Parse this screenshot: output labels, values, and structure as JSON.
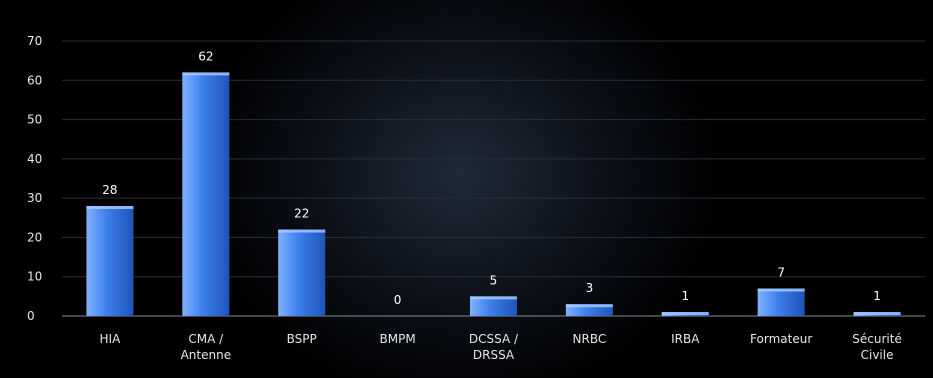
{
  "chart_data": {
    "type": "bar",
    "categories": [
      [
        "HIA"
      ],
      [
        "CMA /",
        "Antenne"
      ],
      [
        "BSPP"
      ],
      [
        "BMPM"
      ],
      [
        "DCSSA /",
        "DRSSA"
      ],
      [
        "NRBC"
      ],
      [
        "IRBA"
      ],
      [
        "Formateur"
      ],
      [
        "Sécurité",
        "Civile"
      ]
    ],
    "values": [
      28,
      62,
      22,
      0,
      5,
      3,
      1,
      7,
      1
    ],
    "ylim": [
      0,
      70
    ],
    "yticks": [
      0,
      10,
      20,
      30,
      40,
      50,
      60,
      70
    ],
    "grid": true,
    "legend": "none",
    "colors": {
      "bar_light": "#7fb2ff",
      "bar_mid": "#3b7dea",
      "bar_dark": "#1f54b8",
      "axis": "#8a8a8a",
      "grid": "#2a2f36"
    }
  }
}
